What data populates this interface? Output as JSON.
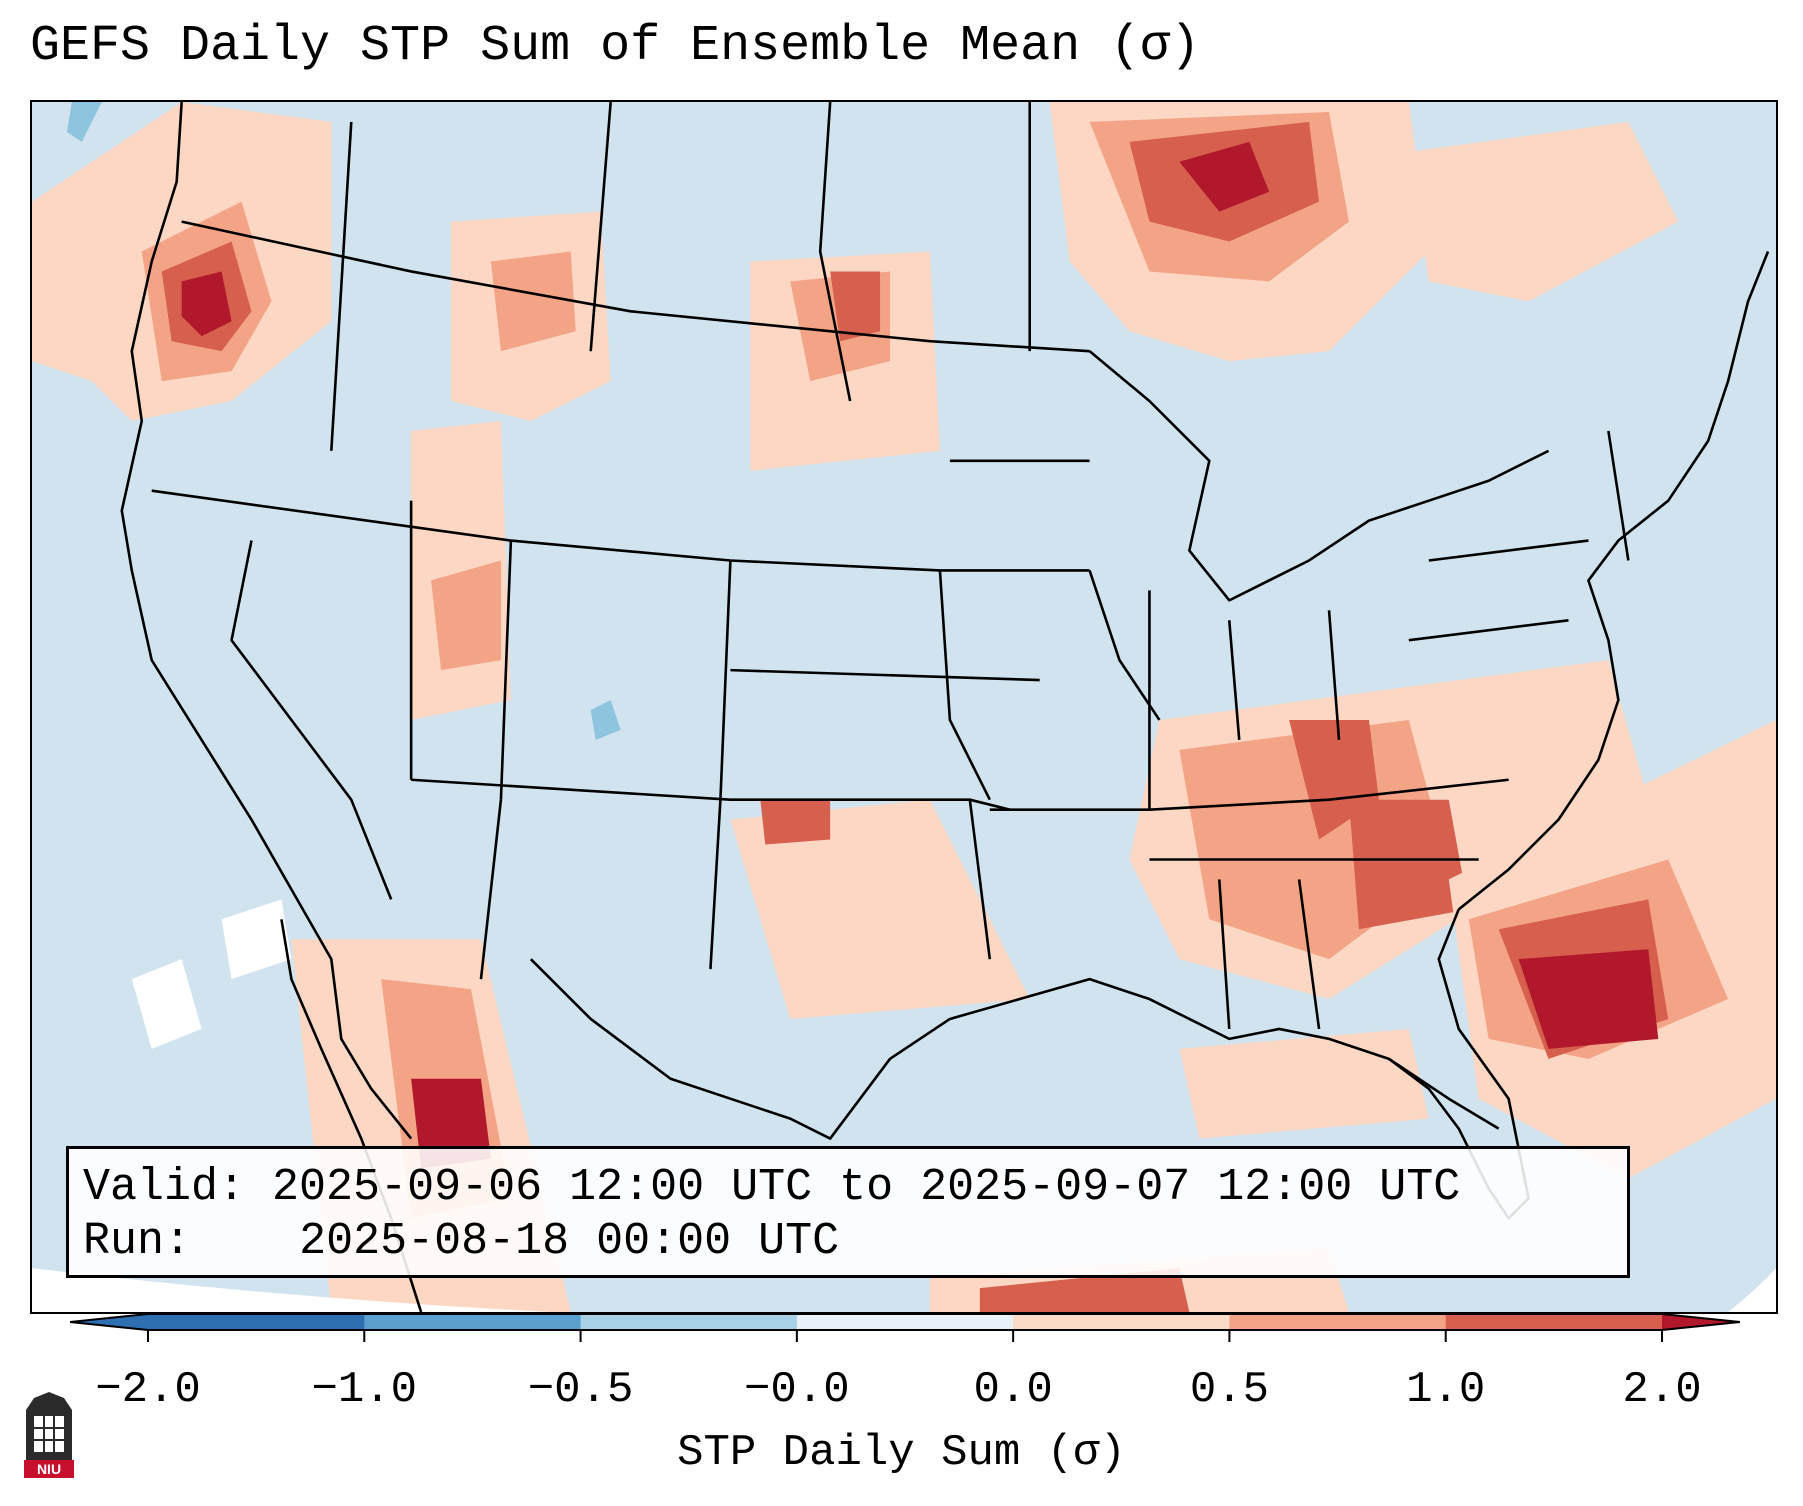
{
  "title": "GEFS Daily STP Sum of Ensemble Mean (σ)",
  "info": {
    "valid_label": "Valid:",
    "valid_value": "2025-09-06 12:00 UTC to 2025-09-07 12:00 UTC",
    "run_label": "Run:",
    "run_value": "2025-08-18 00:00 UTC"
  },
  "colorbar": {
    "label": "STP Daily Sum (σ)",
    "ticks": [
      "−2.0",
      "−1.0",
      "−0.5",
      "−0.0",
      "0.0",
      "0.5",
      "1.0",
      "2.0"
    ],
    "colors": [
      "#2d6fb0",
      "#5ba1d0",
      "#a8d0e6",
      "#e8f1f7",
      "#fadbc8",
      "#f4a486",
      "#d65f4e",
      "#b2182b"
    ],
    "extend": "both"
  },
  "legend_colors": {
    "ocean": "#d0e3ef",
    "light": "#fbd7c4",
    "medium": "#f4a486",
    "strong": "#d65f4e",
    "extreme": "#b2182b",
    "negative": "#8ec4de"
  },
  "logo": {
    "text": "NIU",
    "color": "#c8102e"
  }
}
